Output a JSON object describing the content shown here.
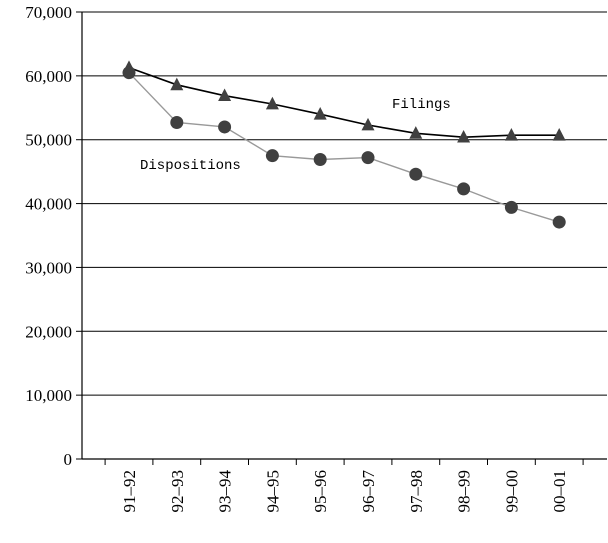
{
  "colors": {
    "filings": "#000000",
    "dispositions": "#999999",
    "markers": "#404040",
    "grid": "#000000",
    "background": "#ffffff"
  },
  "chart_data": {
    "type": "line",
    "title": "",
    "xlabel": "",
    "ylabel": "",
    "categories": [
      "91–92",
      "92–93",
      "93–94",
      "94–95",
      "95–96",
      "96–97",
      "97–98",
      "98–99",
      "99–00",
      "00–01"
    ],
    "ylim": [
      0,
      70000
    ],
    "yticks": [
      0,
      10000,
      20000,
      30000,
      40000,
      50000,
      60000,
      70000
    ],
    "ytick_labels": [
      "0",
      "10,000",
      "20,000",
      "30,000",
      "40,000",
      "50,000",
      "60,000",
      "70,000"
    ],
    "grid": true,
    "legend": "none",
    "series": [
      {
        "name": "Filings",
        "marker": "triangle",
        "values": [
          61300,
          58600,
          56900,
          55600,
          54000,
          52300,
          51000,
          50400,
          50700,
          50700
        ]
      },
      {
        "name": "Dispositions",
        "marker": "circle",
        "values": [
          60500,
          52700,
          52000,
          47500,
          46900,
          47200,
          44600,
          42300,
          39400,
          37100
        ]
      }
    ]
  }
}
